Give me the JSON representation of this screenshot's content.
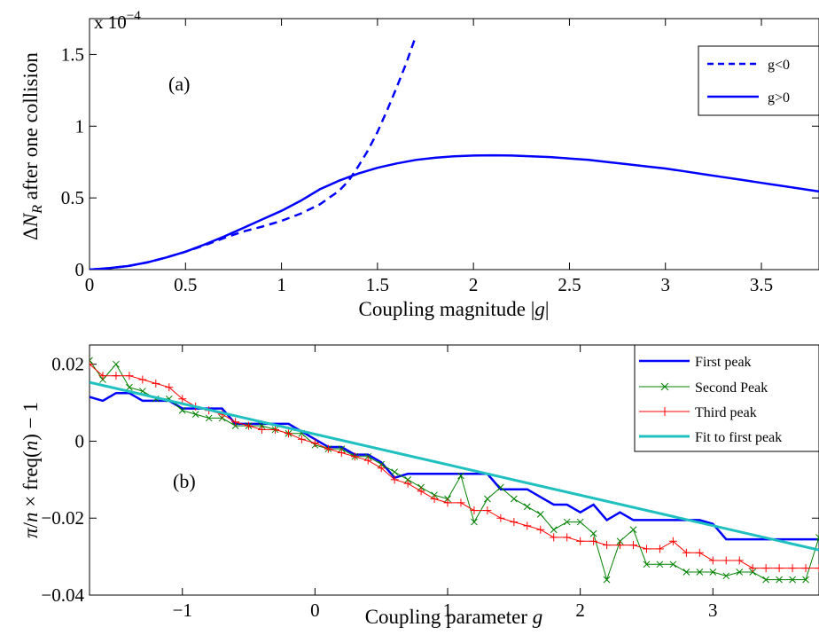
{
  "chart_data": [
    {
      "type": "line",
      "panel_label": "(a)",
      "xlabel": "Coupling magnitude |g|",
      "ylabel": "ΔN_R after one collision",
      "y_exponent_label": "x 10",
      "y_exponent_power": "−4",
      "xlim": [
        0,
        3.8
      ],
      "ylim": [
        0,
        1.75
      ],
      "xticks": [
        0,
        0.5,
        1,
        1.5,
        2,
        2.5,
        3,
        3.5
      ],
      "xtick_labels": [
        "0",
        "0.5",
        "1",
        "1.5",
        "2",
        "2.5",
        "3",
        "3.5"
      ],
      "yticks": [
        0,
        0.5,
        1,
        1.5
      ],
      "ytick_labels": [
        "0",
        "0.5",
        "1",
        "1.5"
      ],
      "legend_position": "top-right",
      "series": [
        {
          "name": "g<0",
          "style": "dashed",
          "color": "#0000ff",
          "x": [
            0,
            0.1,
            0.2,
            0.3,
            0.4,
            0.5,
            0.6,
            0.7,
            0.8,
            0.9,
            1.0,
            1.1,
            1.2,
            1.3,
            1.35,
            1.4,
            1.45,
            1.5,
            1.55,
            1.6,
            1.65,
            1.7
          ],
          "y": [
            0,
            0.01,
            0.025,
            0.05,
            0.085,
            0.125,
            0.17,
            0.22,
            0.265,
            0.3,
            0.34,
            0.39,
            0.455,
            0.55,
            0.62,
            0.72,
            0.83,
            0.96,
            1.11,
            1.27,
            1.44,
            1.63
          ]
        },
        {
          "name": "g>0",
          "style": "solid",
          "color": "#0000ff",
          "x": [
            0,
            0.1,
            0.2,
            0.3,
            0.4,
            0.5,
            0.6,
            0.7,
            0.8,
            0.9,
            1.0,
            1.1,
            1.2,
            1.3,
            1.4,
            1.5,
            1.6,
            1.7,
            1.8,
            1.9,
            2.0,
            2.1,
            2.2,
            2.3,
            2.4,
            2.5,
            2.6,
            2.7,
            2.8,
            2.9,
            3.0,
            3.1,
            3.2,
            3.3,
            3.4,
            3.5,
            3.6,
            3.7,
            3.8
          ],
          "y": [
            0,
            0.01,
            0.025,
            0.05,
            0.085,
            0.125,
            0.175,
            0.23,
            0.29,
            0.35,
            0.41,
            0.48,
            0.56,
            0.62,
            0.67,
            0.71,
            0.74,
            0.765,
            0.78,
            0.79,
            0.795,
            0.797,
            0.795,
            0.79,
            0.785,
            0.775,
            0.765,
            0.75,
            0.735,
            0.72,
            0.705,
            0.685,
            0.665,
            0.645,
            0.625,
            0.605,
            0.585,
            0.565,
            0.545
          ]
        }
      ]
    },
    {
      "type": "line",
      "panel_label": "(b)",
      "xlabel": "Coupling parameter g",
      "ylabel": "π/n × freq(n) − 1",
      "xlim": [
        -1.7,
        3.8
      ],
      "ylim": [
        -0.04,
        0.025
      ],
      "xticks": [
        -1,
        0,
        1,
        2,
        3
      ],
      "xtick_labels": [
        "−1",
        "0",
        "1",
        "2",
        "3"
      ],
      "yticks": [
        0.02,
        0,
        -0.02,
        -0.04
      ],
      "ytick_labels": [
        "0.02",
        "0",
        "−0.02",
        "−0.04"
      ],
      "legend_position": "top-right",
      "series": [
        {
          "name": "First peak",
          "color": "#0000ff",
          "style": "solid",
          "x": [
            -1.7,
            -1.6,
            -1.5,
            -1.4,
            -1.3,
            -1.2,
            -1.1,
            -1.0,
            -0.9,
            -0.8,
            -0.7,
            -0.6,
            -0.5,
            -0.4,
            -0.3,
            -0.2,
            -0.1,
            0.0,
            0.1,
            0.2,
            0.3,
            0.4,
            0.5,
            0.6,
            0.7,
            0.8,
            0.9,
            1.0,
            1.1,
            1.2,
            1.3,
            1.4,
            1.5,
            1.6,
            1.7,
            1.8,
            1.9,
            2.0,
            2.1,
            2.2,
            2.3,
            2.4,
            2.5,
            2.6,
            2.7,
            2.8,
            2.9,
            3.0,
            3.1,
            3.2,
            3.3,
            3.4,
            3.5,
            3.6,
            3.7,
            3.8
          ],
          "y": [
            0.0115,
            0.0105,
            0.0125,
            0.0125,
            0.0105,
            0.0105,
            0.0105,
            0.0085,
            0.0085,
            0.0085,
            0.0085,
            0.0045,
            0.0045,
            0.0045,
            0.0045,
            0.0045,
            0.0025,
            0.0005,
            -0.0015,
            -0.0015,
            -0.0035,
            -0.0035,
            -0.0055,
            -0.0095,
            -0.0085,
            -0.0085,
            -0.0085,
            -0.0085,
            -0.0085,
            -0.0085,
            -0.0085,
            -0.0125,
            -0.0125,
            -0.0125,
            -0.0145,
            -0.0165,
            -0.0165,
            -0.0185,
            -0.0165,
            -0.0205,
            -0.0185,
            -0.0205,
            -0.0205,
            -0.0205,
            -0.0205,
            -0.0205,
            -0.0205,
            -0.0215,
            -0.0255,
            -0.0255,
            -0.0255,
            -0.0255,
            -0.0255,
            -0.0255,
            -0.0255,
            -0.0255
          ]
        },
        {
          "name": "Second Peak",
          "color": "#008000",
          "style": "solid-x",
          "x": [
            -1.7,
            -1.6,
            -1.5,
            -1.4,
            -1.3,
            -1.2,
            -1.1,
            -1.0,
            -0.9,
            -0.8,
            -0.7,
            -0.6,
            -0.5,
            -0.4,
            -0.3,
            -0.2,
            -0.1,
            0.0,
            0.1,
            0.2,
            0.3,
            0.4,
            0.5,
            0.6,
            0.7,
            0.8,
            0.9,
            1.0,
            1.1,
            1.2,
            1.3,
            1.4,
            1.5,
            1.6,
            1.7,
            1.8,
            1.9,
            2.0,
            2.1,
            2.2,
            2.3,
            2.4,
            2.5,
            2.6,
            2.7,
            2.8,
            2.9,
            3.0,
            3.1,
            3.2,
            3.3,
            3.4,
            3.5,
            3.6,
            3.7,
            3.8
          ],
          "y": [
            0.021,
            0.016,
            0.02,
            0.014,
            0.013,
            0.011,
            0.011,
            0.008,
            0.007,
            0.006,
            0.006,
            0.004,
            0.004,
            0.004,
            0.003,
            0.002,
            0.002,
            -0.001,
            -0.002,
            -0.002,
            -0.004,
            -0.004,
            -0.006,
            -0.008,
            -0.01,
            -0.012,
            -0.014,
            -0.015,
            -0.009,
            -0.021,
            -0.015,
            -0.012,
            -0.015,
            -0.017,
            -0.019,
            -0.023,
            -0.021,
            -0.021,
            -0.024,
            -0.036,
            -0.026,
            -0.023,
            -0.032,
            -0.032,
            -0.032,
            -0.034,
            -0.034,
            -0.034,
            -0.035,
            -0.034,
            -0.034,
            -0.036,
            -0.036,
            -0.036,
            -0.036,
            -0.025
          ]
        },
        {
          "name": "Third peak",
          "color": "#ff0000",
          "style": "solid-plus",
          "x": [
            -1.7,
            -1.6,
            -1.5,
            -1.4,
            -1.3,
            -1.2,
            -1.1,
            -1.0,
            -0.9,
            -0.8,
            -0.7,
            -0.6,
            -0.5,
            -0.4,
            -0.3,
            -0.2,
            -0.1,
            0.0,
            0.1,
            0.2,
            0.3,
            0.4,
            0.5,
            0.6,
            0.7,
            0.8,
            0.9,
            1.0,
            1.1,
            1.2,
            1.3,
            1.4,
            1.5,
            1.6,
            1.7,
            1.8,
            1.9,
            2.0,
            2.1,
            2.2,
            2.3,
            2.4,
            2.5,
            2.6,
            2.7,
            2.8,
            2.9,
            3.0,
            3.1,
            3.2,
            3.3,
            3.4,
            3.5,
            3.6,
            3.7,
            3.8
          ],
          "y": [
            0.02,
            0.017,
            0.017,
            0.017,
            0.016,
            0.015,
            0.014,
            0.011,
            0.009,
            0.008,
            0.007,
            0.005,
            0.004,
            0.003,
            0.003,
            0.002,
            0.0005,
            -0.0005,
            -0.002,
            -0.003,
            -0.004,
            -0.005,
            -0.007,
            -0.01,
            -0.011,
            -0.013,
            -0.015,
            -0.016,
            -0.016,
            -0.018,
            -0.018,
            -0.02,
            -0.021,
            -0.022,
            -0.023,
            -0.025,
            -0.025,
            -0.026,
            -0.026,
            -0.027,
            -0.027,
            -0.027,
            -0.028,
            -0.028,
            -0.026,
            -0.029,
            -0.029,
            -0.031,
            -0.031,
            -0.031,
            -0.033,
            -0.033,
            -0.033,
            -0.033,
            -0.033,
            -0.033
          ]
        },
        {
          "name": "Fit to first peak",
          "color": "#20c0c0",
          "style": "solid-thick",
          "x": [
            -1.7,
            3.8
          ],
          "y": [
            0.0153,
            -0.0283
          ]
        }
      ]
    }
  ]
}
